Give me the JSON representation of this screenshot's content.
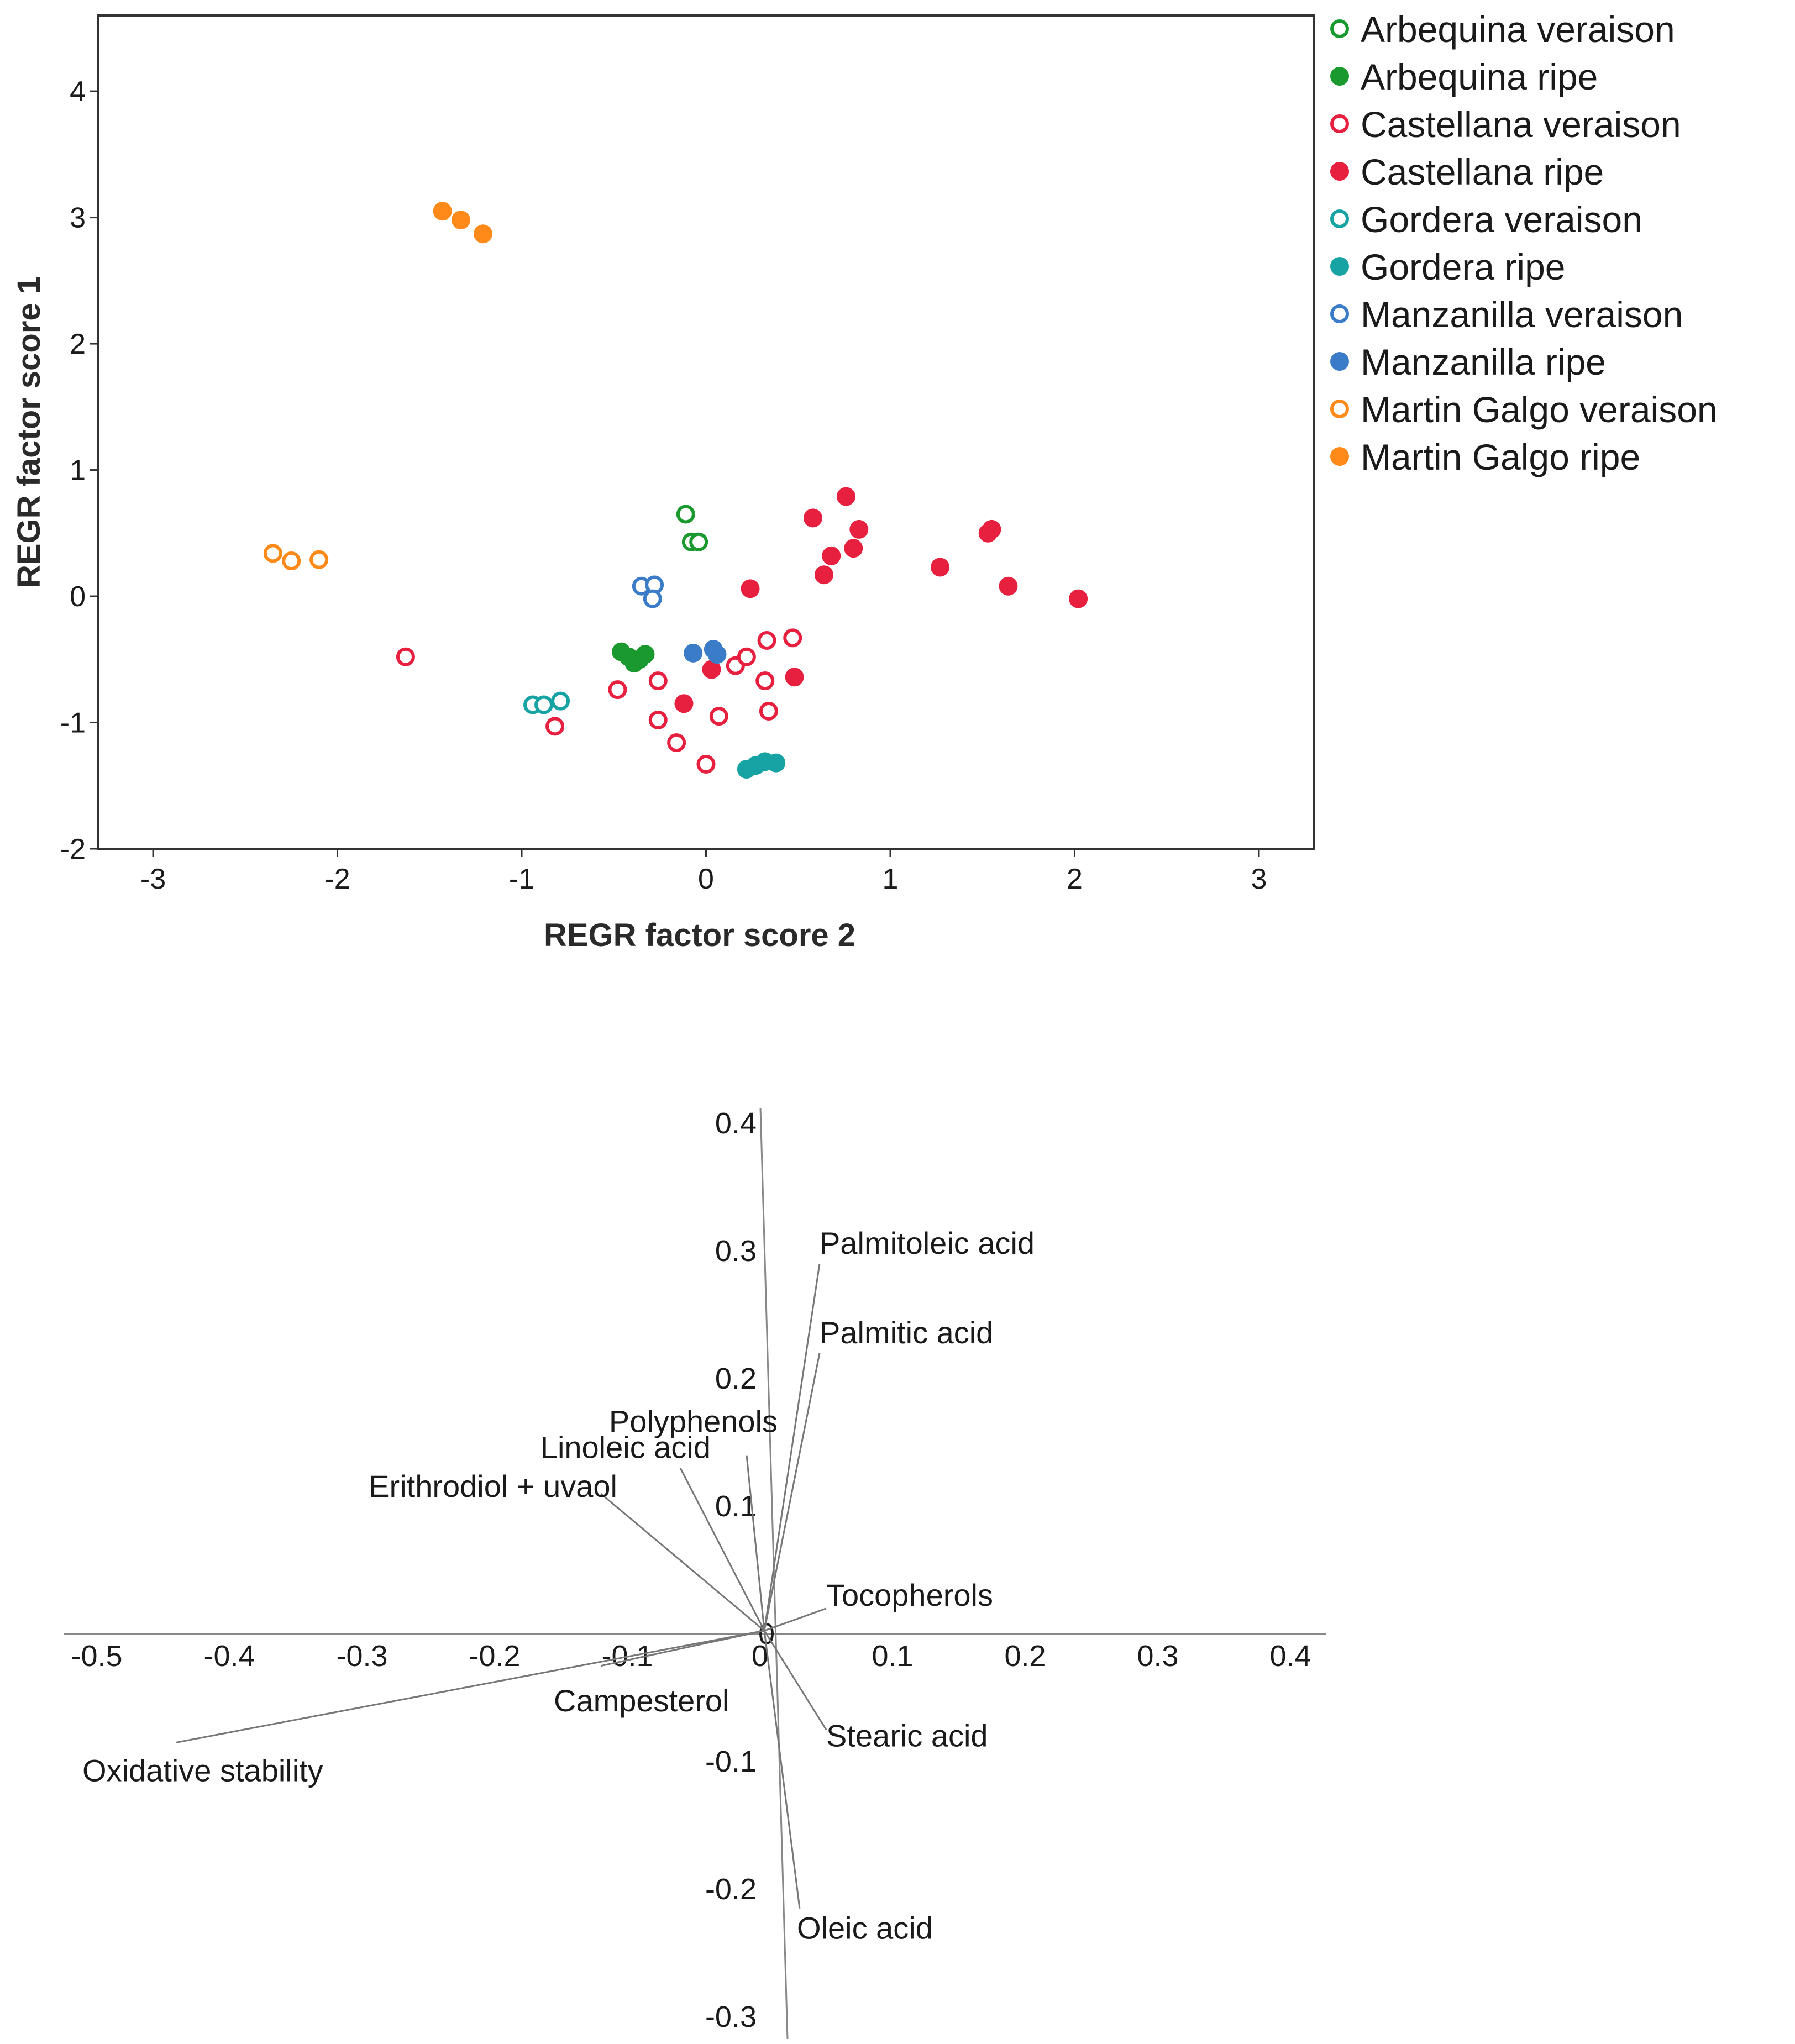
{
  "chart_data": [
    {
      "type": "scatter",
      "title": "",
      "xlabel": "REGR factor score 2",
      "ylabel": "REGR factor score 1",
      "xlim": [
        -3.3,
        3.3
      ],
      "ylim": [
        -2,
        4.6
      ],
      "xticks": [
        "-3",
        "-2",
        "-1",
        "0",
        "1",
        "2",
        "3"
      ],
      "yticks": [
        "-2",
        "-1",
        "0",
        "1",
        "2",
        "3",
        "4"
      ],
      "grid": false,
      "legend_position": "right",
      "series": [
        {
          "name": "Arbequina veraison",
          "color": "#1a9a2e",
          "filled": false,
          "points": [
            [
              -0.11,
              0.65
            ],
            [
              -0.08,
              0.43
            ],
            [
              -0.04,
              0.43
            ]
          ]
        },
        {
          "name": "Arbequina ripe",
          "color": "#1a9a2e",
          "filled": true,
          "points": [
            [
              -0.46,
              -0.44
            ],
            [
              -0.42,
              -0.48
            ],
            [
              -0.39,
              -0.53
            ],
            [
              -0.36,
              -0.5
            ],
            [
              -0.33,
              -0.46
            ]
          ]
        },
        {
          "name": "Castellana veraison",
          "color": "#e8203f",
          "filled": false,
          "points": [
            [
              -1.63,
              -0.48
            ],
            [
              -0.82,
              -1.03
            ],
            [
              -0.48,
              -0.74
            ],
            [
              -0.26,
              -0.67
            ],
            [
              -0.26,
              -0.98
            ],
            [
              -0.16,
              -1.16
            ],
            [
              0.0,
              -1.33
            ],
            [
              0.07,
              -0.95
            ],
            [
              0.16,
              -0.55
            ],
            [
              0.22,
              -0.48
            ],
            [
              0.33,
              -0.35
            ],
            [
              0.32,
              -0.67
            ],
            [
              0.34,
              -0.91
            ],
            [
              0.47,
              -0.33
            ]
          ]
        },
        {
          "name": "Castellana ripe",
          "color": "#e8203f",
          "filled": true,
          "points": [
            [
              -0.12,
              -0.85
            ],
            [
              0.03,
              -0.58
            ],
            [
              0.24,
              0.06
            ],
            [
              0.48,
              -0.64
            ],
            [
              0.58,
              0.62
            ],
            [
              0.64,
              0.17
            ],
            [
              0.68,
              0.32
            ],
            [
              0.76,
              0.79
            ],
            [
              0.8,
              0.38
            ],
            [
              0.83,
              0.53
            ],
            [
              1.27,
              0.23
            ],
            [
              1.53,
              0.5
            ],
            [
              1.55,
              0.53
            ],
            [
              1.64,
              0.08
            ],
            [
              2.02,
              -0.02
            ]
          ]
        },
        {
          "name": "Gordera veraison",
          "color": "#17a3a3",
          "filled": false,
          "points": [
            [
              -0.94,
              -0.86
            ],
            [
              -0.88,
              -0.86
            ],
            [
              -0.79,
              -0.83
            ]
          ]
        },
        {
          "name": "Gordera ripe",
          "color": "#17a3a3",
          "filled": true,
          "points": [
            [
              0.22,
              -1.37
            ],
            [
              0.27,
              -1.34
            ],
            [
              0.32,
              -1.31
            ],
            [
              0.38,
              -1.32
            ]
          ]
        },
        {
          "name": "Manzanilla veraison",
          "color": "#3a7cc7",
          "filled": false,
          "points": [
            [
              -0.35,
              0.08
            ],
            [
              -0.28,
              0.09
            ],
            [
              -0.29,
              -0.02
            ]
          ]
        },
        {
          "name": "Manzanilla ripe",
          "color": "#3a7cc7",
          "filled": true,
          "points": [
            [
              -0.07,
              -0.45
            ],
            [
              0.04,
              -0.42
            ],
            [
              0.06,
              -0.46
            ]
          ]
        },
        {
          "name": "Martin Galgo veraison",
          "color": "#ff8a1a",
          "filled": false,
          "points": [
            [
              -2.35,
              0.34
            ],
            [
              -2.25,
              0.28
            ],
            [
              -2.1,
              0.29
            ]
          ]
        },
        {
          "name": "Martin Galgo ripe",
          "color": "#ff8a1a",
          "filled": true,
          "points": [
            [
              -1.43,
              3.05
            ],
            [
              -1.33,
              2.98
            ],
            [
              -1.21,
              2.87
            ]
          ]
        }
      ]
    },
    {
      "type": "loading_plot",
      "title": "",
      "xlim": [
        -0.5,
        0.4
      ],
      "ylim": [
        -0.3,
        0.4
      ],
      "xticks": [
        "-0.5",
        "-0.4",
        "-0.3",
        "-0.2",
        "-0.1",
        "0",
        "0.1",
        "0.2",
        "0.3",
        "0.4"
      ],
      "yticks": [
        "0.4",
        "0.3",
        "0.2",
        "0.1",
        "-0.1",
        "-0.2",
        "-0.3"
      ],
      "origin_label": "0",
      "loadings": [
        {
          "label": "Palmitoleic acid",
          "x": 0.045,
          "y": 0.29
        },
        {
          "label": "Palmitic acid",
          "x": 0.045,
          "y": 0.22
        },
        {
          "label": "Polyphenols",
          "x": -0.01,
          "y": 0.14
        },
        {
          "label": "Linoleic acid",
          "x": -0.06,
          "y": 0.13
        },
        {
          "label": "Erithrodiol + uvaol",
          "x": -0.12,
          "y": 0.11
        },
        {
          "label": "Tocopherols",
          "x": 0.05,
          "y": 0.02
        },
        {
          "label": "Campesterol",
          "x": -0.12,
          "y": -0.025
        },
        {
          "label": "Stearic acid",
          "x": 0.05,
          "y": -0.075
        },
        {
          "label": "Oxidative stability",
          "x": -0.44,
          "y": -0.085
        },
        {
          "label": "Oleic acid",
          "x": 0.03,
          "y": -0.215
        }
      ]
    }
  ]
}
